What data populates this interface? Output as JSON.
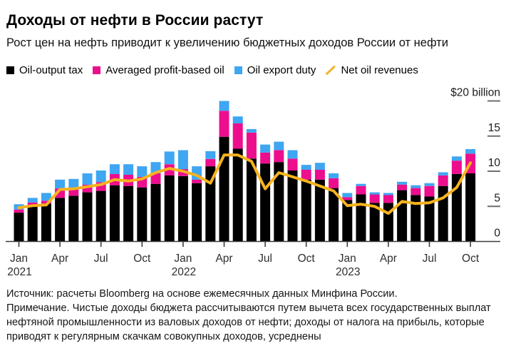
{
  "header": {
    "title": "Доходы от нефти в России растут",
    "subtitle": "Рост цен на нефть приводит к увеличению бюджетных доходов России от нефти"
  },
  "legend": {
    "items": [
      {
        "label": "Oil-output tax",
        "swatch": "square",
        "color": "#000000"
      },
      {
        "label": "Averaged profit-based oil",
        "swatch": "square",
        "color": "#ec0e8d"
      },
      {
        "label": "Oil export duty",
        "swatch": "square",
        "color": "#3fa6f2"
      },
      {
        "label": "Net oil revenues",
        "swatch": "line",
        "color": "#f0b52e"
      }
    ]
  },
  "chart_data": {
    "type": "bar",
    "subtype": "stacked-bar-with-line",
    "unit_label": "$20 billion",
    "ylim": [
      0,
      20
    ],
    "yticks": [
      0,
      5,
      10,
      15,
      20
    ],
    "grid": false,
    "legend_position": "top",
    "categories": [
      "Jan 2021",
      "Feb 2021",
      "Mar 2021",
      "Apr 2021",
      "May 2021",
      "Jun 2021",
      "Jul 2021",
      "Aug 2021",
      "Sep 2021",
      "Oct 2021",
      "Nov 2021",
      "Dec 2021",
      "Jan 2022",
      "Feb 2022",
      "Mar 2022",
      "Apr 2022",
      "May 2022",
      "Jun 2022",
      "Jul 2022",
      "Aug 2022",
      "Sep 2022",
      "Oct 2022",
      "Nov 2022",
      "Dec 2022",
      "Jan 2023",
      "Feb 2023",
      "Mar 2023",
      "Apr 2023",
      "May 2023",
      "Jun 2023",
      "Jul 2023",
      "Aug 2023",
      "Sep 2023",
      "Oct 2023"
    ],
    "x_tick_months": [
      "Jan",
      "Apr",
      "Jul",
      "Oct"
    ],
    "year_labels": [
      "2021",
      "2022",
      "2023"
    ],
    "series": [
      {
        "name": "Oil-output tax",
        "color": "#000000",
        "values": [
          4.1,
          5.2,
          5.4,
          6.2,
          6.5,
          7.0,
          7.2,
          8.0,
          7.9,
          7.7,
          8.2,
          9.4,
          9.3,
          8.3,
          10.7,
          14.9,
          13.2,
          11.8,
          11.1,
          11.3,
          10.1,
          8.8,
          8.8,
          7.6,
          5.9,
          6.7,
          5.5,
          5.5,
          7.3,
          6.6,
          6.4,
          7.9,
          9.6,
          9.7
        ]
      },
      {
        "name": "Averaged profit-based oil",
        "color": "#ec0e8d",
        "values": [
          0.45,
          0.35,
          0.4,
          1.35,
          1.05,
          1.1,
          1.25,
          1.6,
          1.6,
          1.5,
          1.5,
          1.6,
          1.0,
          0.5,
          1.05,
          3.7,
          3.6,
          3.7,
          1.55,
          1.7,
          1.7,
          1.4,
          1.4,
          1.4,
          0.4,
          1.2,
          1.2,
          1.1,
          0.8,
          1.0,
          1.5,
          1.5,
          1.9,
          2.8
        ]
      },
      {
        "name": "Oil export duty",
        "color": "#3fa6f2",
        "values": [
          0.75,
          0.65,
          1.1,
          1.25,
          1.35,
          1.6,
          1.65,
          1.4,
          1.5,
          1.5,
          1.6,
          1.8,
          2.7,
          1.9,
          1.1,
          1.4,
          1.0,
          0.5,
          1.15,
          1.2,
          1.2,
          0.7,
          1.0,
          0.7,
          0.6,
          0.3,
          0.3,
          0.3,
          0.4,
          0.4,
          0.4,
          0.45,
          0.6,
          0.65
        ]
      }
    ],
    "line_series": {
      "name": "Net oil revenues",
      "color": "#f6b31e",
      "values": [
        4.8,
        5.1,
        5.2,
        7.4,
        7.5,
        7.8,
        8.1,
        8.8,
        8.6,
        8.9,
        9.8,
        10.4,
        10.0,
        9.4,
        8.3,
        12.3,
        12.3,
        11.4,
        7.5,
        9.8,
        9.2,
        8.6,
        7.9,
        7.2,
        5.1,
        5.3,
        5.0,
        4.0,
        5.7,
        5.4,
        5.5,
        6.2,
        7.7,
        11.2
      ]
    }
  },
  "footer": {
    "source": "Источник: расчеты Bloomberg на основе ежемесячных данных Минфина России.",
    "note": "Примечание. Чистые доходы бюджета рассчитываются путем вычета всех государственных выплат нефтяной промышленности из валовых доходов от нефти; доходы от налога на прибыль, которые приводят к регулярным скачкам совокупных доходов, усреднены"
  }
}
